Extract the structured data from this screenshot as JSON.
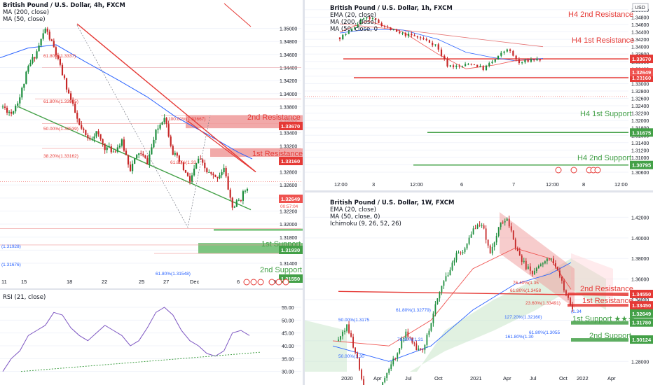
{
  "colors": {
    "up": "#26a69a",
    "up_body": "#1e8e3e",
    "down": "#ef5350",
    "dn_body": "#c62828",
    "red_zone": "#ef9a9a",
    "green_zone": "#66bb6a",
    "blue": "#2962ff",
    "grid": "#f0f3fa"
  },
  "left": {
    "title": "British Pound / U.S. Dollar, 4h, FXCM",
    "ind1": "MA (200, close)",
    "ind2": "MA (50, close)",
    "y_ticks": [
      "1.35000",
      "1.34800",
      "1.34600",
      "1.34400",
      "1.34200",
      "1.34000",
      "1.33800",
      "1.33600",
      "1.33400",
      "1.33200",
      "1.33000",
      "1.32800",
      "1.32600",
      "1.32400",
      "1.32200",
      "1.32000",
      "1.31800",
      "1.31600",
      "1.31400"
    ],
    "x_ticks": [
      "11",
      "15",
      "18",
      "22",
      "25",
      "27",
      "Dec",
      "6",
      "9"
    ],
    "price_badge": "1.32649",
    "price_timer": "00:57:04",
    "levels": [
      {
        "name": "2nd Resistance",
        "price": "1.33670"
      },
      {
        "name": "1st Resistance",
        "price": "1.33160"
      },
      {
        "name": "1st Support",
        "price": "1.31930"
      },
      {
        "name": "2nd Support",
        "price": "1.31550"
      }
    ],
    "fib_labels": [
      "100.00%(1.33667)",
      "61.80%(1.3337)",
      "61.80%(1.33915)",
      "50.00%(1.33539)",
      "38.20%(1.33162)",
      "61.80%(1.33",
      "(1.31928)",
      "(1.31676)",
      "61.80%(1.31548)"
    ],
    "chart_data": {
      "type": "candlestick",
      "x": [
        "11",
        "15",
        "18",
        "22",
        "25",
        "27",
        "Dec",
        "6",
        "9"
      ],
      "ylim": [
        1.3125,
        1.3535
      ],
      "close_path": [
        1.338,
        1.337,
        1.3395,
        1.344,
        1.3465,
        1.35,
        1.347,
        1.343,
        1.339,
        1.335,
        1.333,
        1.334,
        1.3318,
        1.3312,
        1.3325,
        1.3285,
        1.331,
        1.3295,
        1.334,
        1.3367,
        1.331,
        1.329,
        1.3265,
        1.33,
        1.328,
        1.327,
        1.3285,
        1.3225,
        1.324,
        1.3265
      ]
    }
  },
  "rsi": {
    "label": "RSI (21, close)",
    "y_ticks": [
      "55.00",
      "50.00",
      "45.00",
      "40.00",
      "35.00",
      "30.00"
    ],
    "values": [
      30,
      35,
      38,
      44,
      46,
      48,
      53,
      52,
      47,
      44,
      42,
      45,
      48,
      46,
      44,
      40,
      42,
      47,
      53,
      55,
      52,
      46,
      42,
      40,
      37,
      36,
      38,
      45,
      46,
      44
    ]
  },
  "tr": {
    "title": "British Pound / U.S. Dollar, 1h, FXCM",
    "ind1": "EMA (20, close)",
    "ind2": "MA (200, close)",
    "ind3": "MA (50, close, 0",
    "currency": "USD",
    "y_ticks": [
      "1.35000",
      "1.34800",
      "1.34600",
      "1.34400",
      "1.34200",
      "1.34000",
      "1.33800",
      "1.33600",
      "1.33400",
      "1.33200",
      "1.33000",
      "1.32800",
      "1.32600",
      "1.32400",
      "1.32200",
      "1.32000",
      "1.31800",
      "1.31600",
      "1.31400",
      "1.31200",
      "1.31000",
      "1.30800",
      "1.30600"
    ],
    "x_ticks": [
      "12:00",
      "3",
      "12:00",
      "6",
      "7",
      "12:00",
      "8",
      "12:00"
    ],
    "price_badge": "1.32649",
    "price_timer": "57:03",
    "levels": [
      {
        "name": "H4 2nd Resistance",
        "price": "1.33670"
      },
      {
        "name": "H4 1st Resistance",
        "price": "1.33160"
      },
      {
        "name": "H4 1st Support",
        "price": "1.31675"
      },
      {
        "name": "H4 2nd Support",
        "price": "1.30795"
      }
    ]
  },
  "br": {
    "title": "British Pound / U.S. Dollar, 1W, FXCM",
    "ind1": "EMA (20, close)",
    "ind2": "MA (50, close, 0)",
    "ind3": "Ichimoku (9, 26, 52, 26)",
    "y_ticks": [
      "1.42000",
      "1.40000",
      "1.38000",
      "1.36000",
      "1.34000",
      "1.32000",
      "1.30000",
      "1.28000"
    ],
    "x_ticks": [
      "2020",
      "Apr",
      "Jul",
      "Oct",
      "2021",
      "Apr",
      "Jul",
      "Oct",
      "2022",
      "Apr"
    ],
    "price_badge": "1.32649",
    "levels": [
      {
        "name": "2nd Resistance",
        "price": "1.34550"
      },
      {
        "name": "1st Resistance",
        "price": "1.33450"
      },
      {
        "name": "1st Support ★★★",
        "price": "1.31780"
      },
      {
        "name": "2nd Support",
        "price": "1.30124"
      }
    ],
    "fib_labels": [
      "76.40%(1.35",
      "61.80%(1.3458",
      "23.60%(1.33491)",
      "61.80%(1.32779)",
      "50.00%(1.3175",
      "78.60%(1.31",
      "127.20%(1.32160)",
      "61.80%(1.3055",
      "161.80%(1.30",
      "50.00%(1.30",
      "(1.34"
    ]
  }
}
